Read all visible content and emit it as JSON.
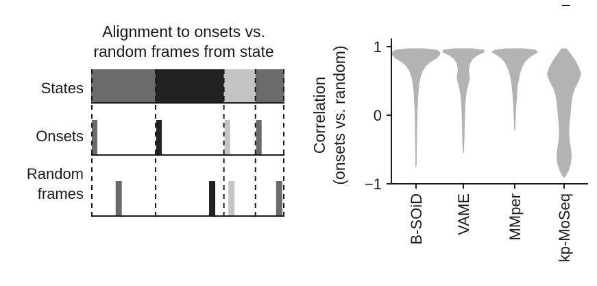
{
  "panel_left": {
    "title_line1": "Alignment to onsets vs.",
    "title_line2": "random frames from state",
    "row_labels": {
      "states": "States",
      "onsets": "Onsets",
      "random_line1": "Random",
      "random_line2": "frames"
    },
    "states": [
      {
        "from": 0,
        "to": 1.0,
        "color": "#6b6b6b"
      },
      {
        "from": 1.0,
        "to": 2.06,
        "color": "#222222"
      },
      {
        "from": 2.06,
        "to": 2.55,
        "color": "#c4c4c4"
      },
      {
        "from": 2.55,
        "to": 3.0,
        "color": "#6b6b6b"
      }
    ],
    "onsets": [
      {
        "at": 0.0,
        "color": "#6b6b6b"
      },
      {
        "at": 1.0,
        "color": "#222222"
      },
      {
        "at": 2.06,
        "color": "#c4c4c4"
      },
      {
        "at": 2.55,
        "color": "#6b6b6b"
      }
    ],
    "random_frames": [
      {
        "at": 0.38,
        "color": "#6b6b6b"
      },
      {
        "at": 1.83,
        "color": "#222222"
      },
      {
        "at": 2.13,
        "color": "#c4c4c4"
      },
      {
        "at": 2.87,
        "color": "#6b6b6b"
      }
    ]
  },
  "chart_data": {
    "type": "violin",
    "ylabel_line1": "Correlation",
    "ylabel_line2": "(onsets vs. random)",
    "ylim": [
      -1,
      1
    ],
    "yticks": [
      -1,
      0,
      1
    ],
    "ytick_labels": [
      "−1",
      "0",
      "1"
    ],
    "categories": [
      "B-SOiD",
      "VAME",
      "MMper",
      "kp-MoSeq"
    ],
    "color": "#b3b3b3",
    "series": [
      {
        "category": "B-SOiD",
        "min": -0.75,
        "max": 0.97,
        "profile": [
          [
            0.97,
            0.35
          ],
          [
            0.95,
            0.85
          ],
          [
            0.92,
            1.0
          ],
          [
            0.88,
            0.98
          ],
          [
            0.83,
            0.85
          ],
          [
            0.78,
            0.6
          ],
          [
            0.72,
            0.4
          ],
          [
            0.65,
            0.27
          ],
          [
            0.55,
            0.17
          ],
          [
            0.45,
            0.12
          ],
          [
            0.3,
            0.08
          ],
          [
            0.1,
            0.05
          ],
          [
            -0.1,
            0.035
          ],
          [
            -0.3,
            0.025
          ],
          [
            -0.5,
            0.018
          ],
          [
            -0.7,
            0.01
          ],
          [
            -0.75,
            0.005
          ]
        ]
      },
      {
        "category": "VAME",
        "min": -0.55,
        "max": 0.97,
        "profile": [
          [
            0.97,
            0.35
          ],
          [
            0.95,
            0.85
          ],
          [
            0.92,
            0.85
          ],
          [
            0.88,
            0.6
          ],
          [
            0.83,
            0.4
          ],
          [
            0.75,
            0.25
          ],
          [
            0.65,
            0.22
          ],
          [
            0.55,
            0.26
          ],
          [
            0.45,
            0.2
          ],
          [
            0.35,
            0.13
          ],
          [
            0.2,
            0.08
          ],
          [
            0.0,
            0.055
          ],
          [
            -0.2,
            0.04
          ],
          [
            -0.4,
            0.025
          ],
          [
            -0.55,
            0.005
          ]
        ]
      },
      {
        "category": "MMper",
        "min": -0.22,
        "max": 0.97,
        "profile": [
          [
            0.97,
            0.35
          ],
          [
            0.95,
            0.85
          ],
          [
            0.92,
            0.95
          ],
          [
            0.88,
            0.75
          ],
          [
            0.83,
            0.55
          ],
          [
            0.77,
            0.4
          ],
          [
            0.7,
            0.3
          ],
          [
            0.6,
            0.2
          ],
          [
            0.45,
            0.12
          ],
          [
            0.3,
            0.08
          ],
          [
            0.15,
            0.05
          ],
          [
            0.0,
            0.03
          ],
          [
            -0.15,
            0.015
          ],
          [
            -0.22,
            0.005
          ]
        ]
      },
      {
        "category": "kp-MoSeq",
        "min": -0.9,
        "max": 0.97,
        "profile": [
          [
            0.97,
            0.1
          ],
          [
            0.9,
            0.25
          ],
          [
            0.8,
            0.45
          ],
          [
            0.7,
            0.6
          ],
          [
            0.6,
            0.7
          ],
          [
            0.5,
            0.6
          ],
          [
            0.4,
            0.45
          ],
          [
            0.3,
            0.35
          ],
          [
            0.2,
            0.3
          ],
          [
            0.1,
            0.27
          ],
          [
            0.0,
            0.25
          ],
          [
            -0.1,
            0.22
          ],
          [
            -0.2,
            0.2
          ],
          [
            -0.3,
            0.2
          ],
          [
            -0.4,
            0.23
          ],
          [
            -0.5,
            0.28
          ],
          [
            -0.6,
            0.3
          ],
          [
            -0.7,
            0.27
          ],
          [
            -0.8,
            0.18
          ],
          [
            -0.88,
            0.07
          ],
          [
            -0.9,
            0.02
          ]
        ]
      }
    ]
  }
}
